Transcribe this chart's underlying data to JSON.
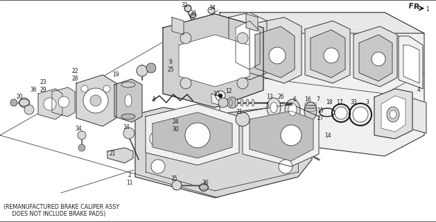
{
  "background_color": "#ffffff",
  "text_color": "#000000",
  "figsize": [
    6.29,
    3.2
  ],
  "dpi": 100,
  "bottom_text_line1": "(REMANUFACTURED BRAKE CALIPER ASSY",
  "bottom_text_line2": "     DOES NOT INCLUDE BRAKE PADS)",
  "fr_label": "FR.",
  "line_color": "#1a1a1a",
  "fill_light": "#f0f0f0",
  "fill_mid": "#d8d8d8",
  "fill_dark": "#b0b0b0",
  "label_fontsize": 5.5,
  "note_fontsize": 5.8
}
